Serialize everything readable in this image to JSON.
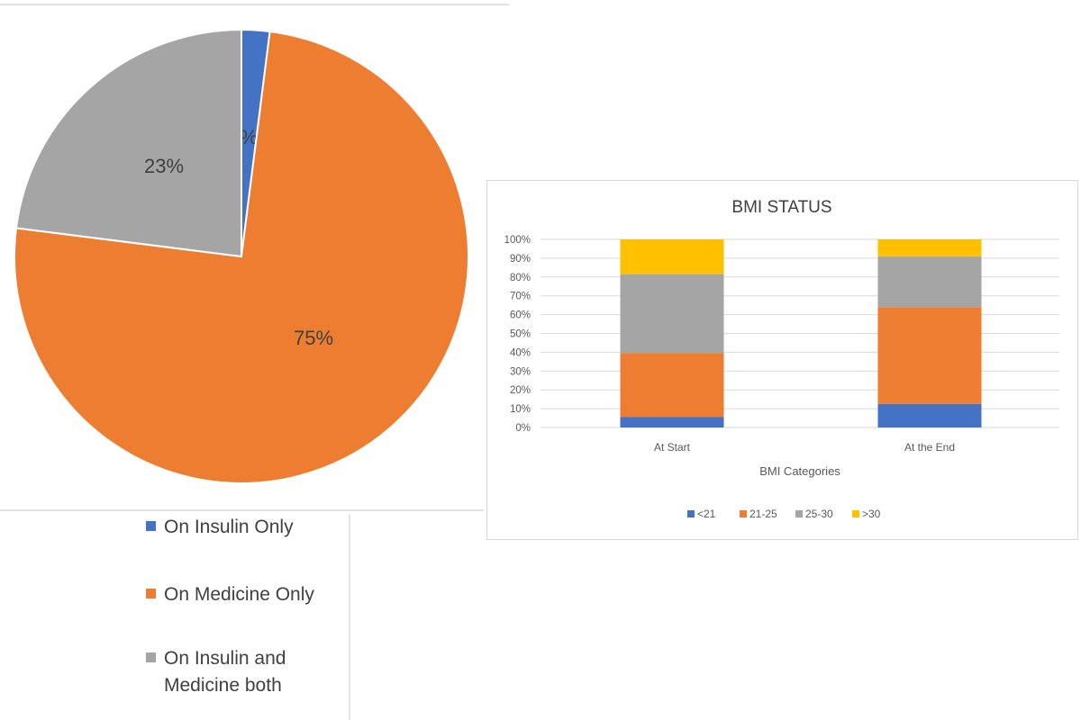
{
  "chart_data": [
    {
      "type": "pie",
      "title": "",
      "categories": [
        "On Insulin Only",
        "On Medicine Only",
        "On Insulin and Medicine both"
      ],
      "values": [
        2,
        75,
        23
      ],
      "labels": [
        "2%",
        "75%",
        "23%"
      ],
      "colors": [
        "#4472C4",
        "#ED7D31",
        "#A5A5A5"
      ],
      "legend": "bottom",
      "legend_lines": [
        [
          "On Insulin Only"
        ],
        [
          "On Medicine Only"
        ],
        [
          "On Insulin and",
          "Medicine both"
        ]
      ]
    },
    {
      "type": "bar",
      "stacked": "percent",
      "title": "BMI STATUS",
      "xlabel": "BMI Categories",
      "ylabel": "",
      "categories": [
        "At Start",
        "At the End"
      ],
      "series": [
        {
          "name": "<21",
          "values": [
            5.5,
            12.5
          ],
          "color": "#4472C4"
        },
        {
          "name": "21-25",
          "values": [
            34,
            51.5
          ],
          "color": "#ED7D31"
        },
        {
          "name": "25-30",
          "values": [
            42,
            27
          ],
          "color": "#A5A5A5"
        },
        {
          "name": ">30",
          "values": [
            18.5,
            9
          ],
          "color": "#FFC000"
        }
      ],
      "yticks": [
        "0%",
        "10%",
        "20%",
        "30%",
        "40%",
        "50%",
        "60%",
        "70%",
        "80%",
        "90%",
        "100%"
      ],
      "ylim": [
        0,
        100
      ],
      "grid": true,
      "legend": "bottom"
    }
  ]
}
